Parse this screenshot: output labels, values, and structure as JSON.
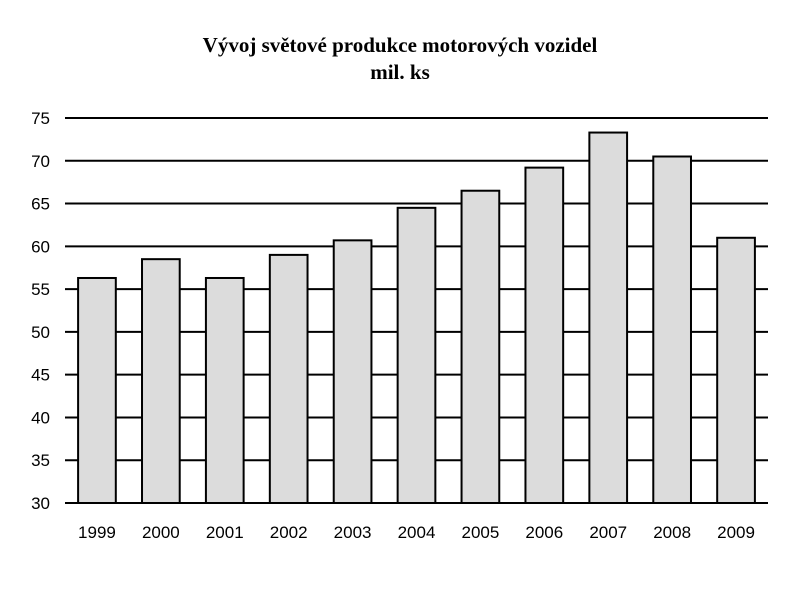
{
  "chart_data": {
    "type": "bar",
    "title": "Vývoj světové produkce motorových vozidel",
    "subtitle": "mil. ks",
    "categories": [
      "1999",
      "2000",
      "2001",
      "2002",
      "2003",
      "2004",
      "2005",
      "2006",
      "2007",
      "2008",
      "2009"
    ],
    "values": [
      56.3,
      58.5,
      56.3,
      59.0,
      60.7,
      64.5,
      66.5,
      69.2,
      73.3,
      70.5,
      61.0
    ],
    "ylim": [
      30,
      75
    ],
    "yticks": [
      "30",
      "35",
      "40",
      "45",
      "50",
      "55",
      "60",
      "65",
      "70",
      "75"
    ],
    "grid": true,
    "bar_color": "#dcdcdc",
    "edge_color": "#000000"
  }
}
